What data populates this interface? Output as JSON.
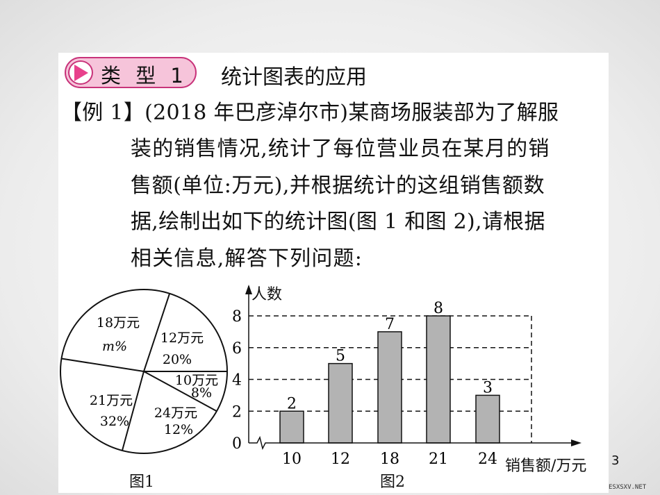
{
  "header": {
    "badge": "类 型 1",
    "title": "统计图表的应用"
  },
  "problem": {
    "lines": [
      "【例 1】(2018 年巴彦淖尔市)某商场服装部为了解服",
      "装的销售情况,统计了每位营业员在某月的销",
      "售额(单位:万元),并根据统计的这组销售额数",
      "据,绘制出如下的统计图(图 1 和图 2),请根据",
      "相关信息,解答下列问题:"
    ]
  },
  "chart_data": [
    {
      "type": "pie",
      "title": "图1",
      "slices": [
        {
          "label": "12万元",
          "percent_label": "20%",
          "value": 20
        },
        {
          "label": "10万元",
          "percent_label": "8%",
          "value": 8
        },
        {
          "label": "24万元",
          "percent_label": "12%",
          "value": 12
        },
        {
          "label": "21万元",
          "percent_label": "32%",
          "value": 32
        },
        {
          "label": "18万元",
          "percent_label": "m%",
          "value": null
        }
      ]
    },
    {
      "type": "bar",
      "title": "图2",
      "ylabel": "人数",
      "xlabel": "销售额/万元",
      "categories": [
        "10",
        "12",
        "18",
        "21",
        "24"
      ],
      "values": [
        2,
        5,
        7,
        8,
        3
      ],
      "ylim": [
        0,
        8
      ],
      "yticks": [
        "0",
        "2",
        "4",
        "6",
        "8"
      ],
      "grid": "dashed horizontal",
      "bar_color": "#b3b3b3"
    }
  ],
  "page_number": "3",
  "watermark": "ESXSXV.NET",
  "colors": {
    "accent": "#c8337a",
    "badge_fill": "#f6c4da"
  }
}
